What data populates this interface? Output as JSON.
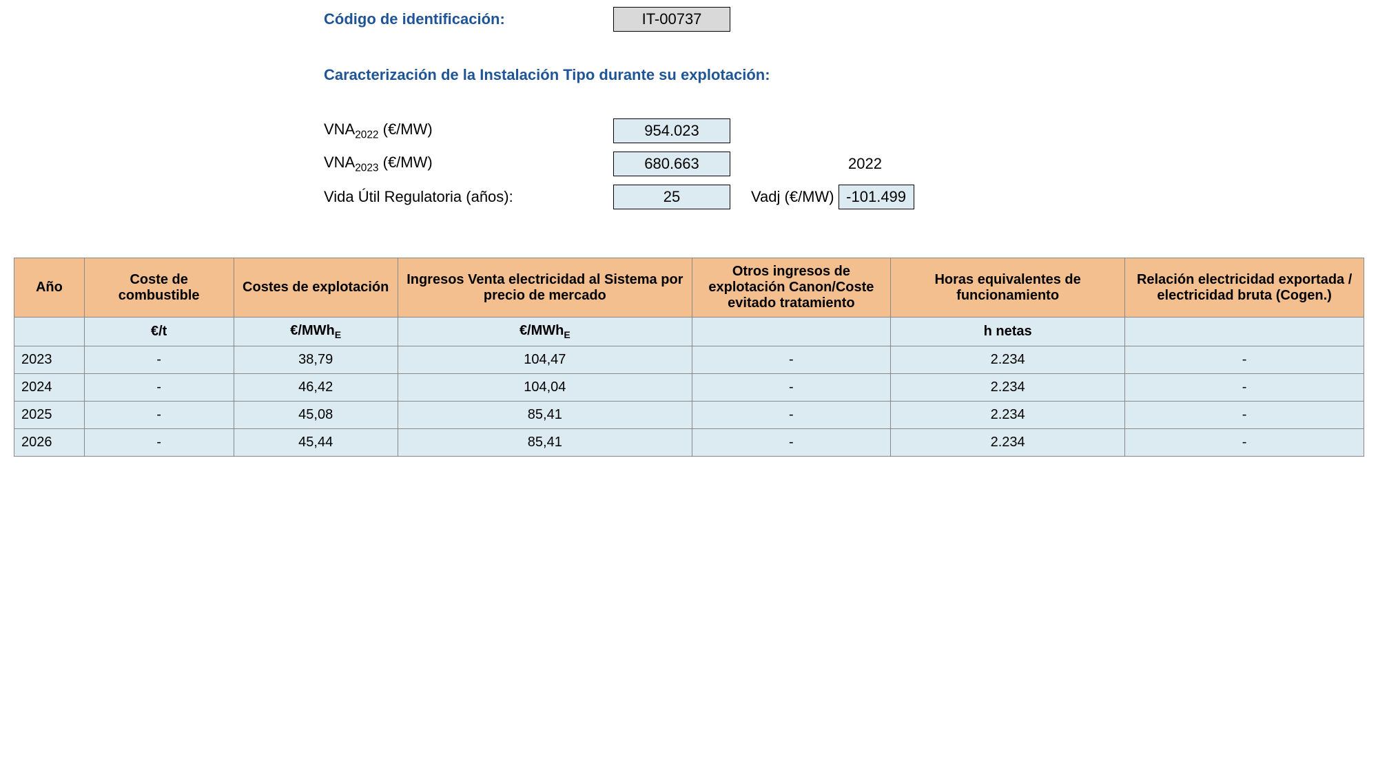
{
  "colors": {
    "heading_blue": "#1f5597",
    "box_gray": "#d9d9d9",
    "box_blue": "#dceaf1",
    "table_header": "#f4bf8e",
    "table_cell": "#dceaf1",
    "border": "#888888"
  },
  "header": {
    "codigo_label": "Código de identificación:",
    "codigo_value": "IT-00737",
    "section_title": "Caracterización de la Instalación Tipo durante su explotación:",
    "vna2022_label_pre": "VNA",
    "vna2022_label_sub": "2022",
    "vna2022_label_post": " (€/MW)",
    "vna2022_value": "954.023",
    "vna2023_label_pre": "VNA",
    "vna2023_label_sub": "2023",
    "vna2023_label_post": " (€/MW)",
    "vna2023_value": "680.663",
    "side_year": "2022",
    "vida_label": "Vida Útil Regulatoria (años):",
    "vida_value": "25",
    "vadj_label": "Vadj (€/MW)",
    "vadj_value": "-101.499"
  },
  "table": {
    "columns": [
      "Año",
      "Coste de combustible",
      "Costes de explotación",
      "Ingresos Venta electricidad al Sistema por precio de mercado",
      "Otros ingresos de explotación Canon/Coste evitado tratamiento",
      "Horas equivalentes de funcionamiento",
      "Relación electricidad exportada / electricidad bruta (Cogen.)"
    ],
    "units": [
      "",
      "€/t",
      "€/MWhE_SUB",
      "€/MWhE_SUB",
      "",
      "h netas",
      ""
    ],
    "rows": [
      {
        "year": "2023",
        "c1": "-",
        "c2": "38,79",
        "c3": "104,47",
        "c4": "-",
        "c5": "2.234",
        "c6": "-"
      },
      {
        "year": "2024",
        "c1": "-",
        "c2": "46,42",
        "c3": "104,04",
        "c4": "-",
        "c5": "2.234",
        "c6": "-"
      },
      {
        "year": "2025",
        "c1": "-",
        "c2": "45,08",
        "c3": "85,41",
        "c4": "-",
        "c5": "2.234",
        "c6": "-"
      },
      {
        "year": "2026",
        "c1": "-",
        "c2": "45,44",
        "c3": "85,41",
        "c4": "-",
        "c5": "2.234",
        "c6": "-"
      }
    ]
  }
}
